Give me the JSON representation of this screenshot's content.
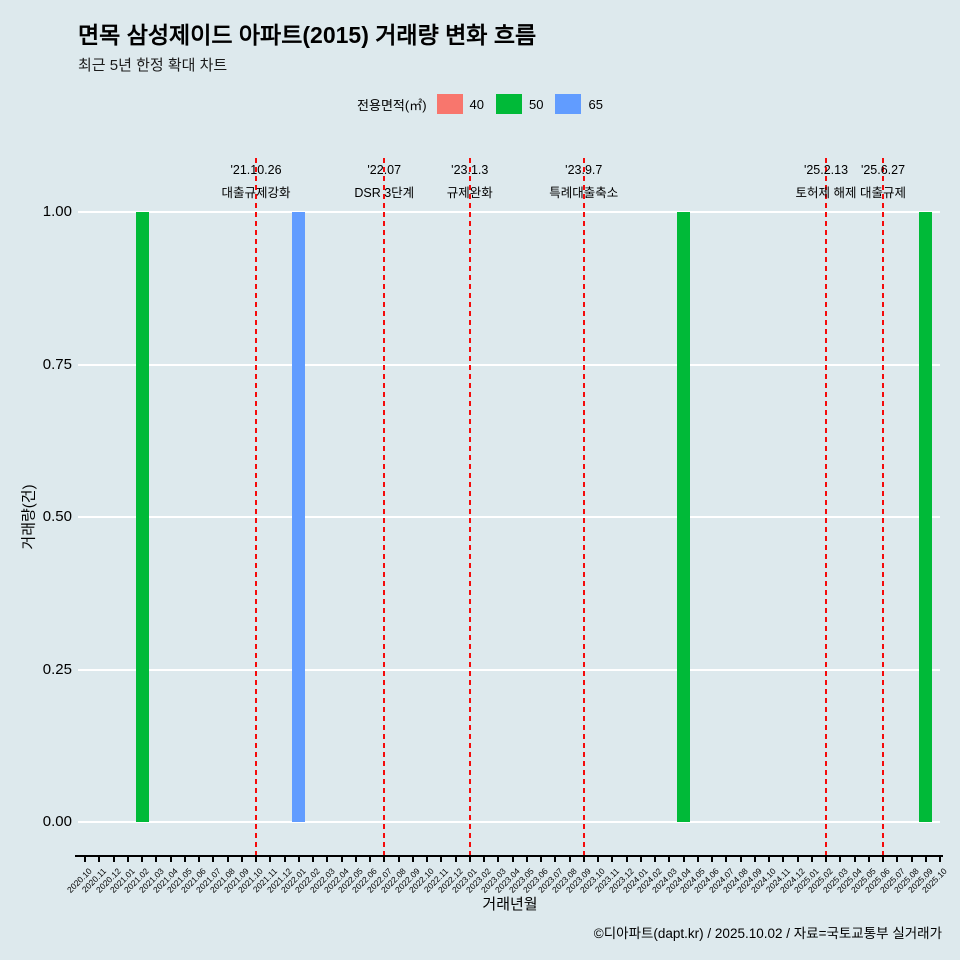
{
  "title": "면목 삼성제이드 아파트(2015) 거래량 변화 흐름",
  "subtitle": "최근 5년 한정 확대 차트",
  "legend": {
    "label": "전용면적(㎡)",
    "items": [
      {
        "label": "40",
        "color": "#f8766d"
      },
      {
        "label": "50",
        "color": "#00ba38"
      },
      {
        "label": "65",
        "color": "#619cff"
      }
    ]
  },
  "chart_data": {
    "type": "bar",
    "title": "면목 삼성제이드 아파트(2015) 거래량 변화 흐름",
    "subtitle": "최근 5년 한정 확대 차트",
    "xlabel": "거래년월",
    "ylabel": "거래량(건)",
    "ylim": [
      0,
      1
    ],
    "yticks": [
      0,
      0.25,
      0.5,
      0.75,
      1
    ],
    "grid": "horizontal-white",
    "legend_position": "top-center",
    "categories": [
      "2020.10",
      "2020.11",
      "2020.12",
      "2021.01",
      "2021.02",
      "2021.03",
      "2021.04",
      "2021.05",
      "2021.06",
      "2021.07",
      "2021.08",
      "2021.09",
      "2021.10",
      "2021.11",
      "2021.12",
      "2022.01",
      "2022.02",
      "2022.03",
      "2022.04",
      "2022.05",
      "2022.06",
      "2022.07",
      "2022.08",
      "2022.09",
      "2022.10",
      "2022.11",
      "2022.12",
      "2023.01",
      "2023.02",
      "2023.03",
      "2023.04",
      "2023.05",
      "2023.06",
      "2023.07",
      "2023.08",
      "2023.09",
      "2023.10",
      "2023.11",
      "2023.12",
      "2024.01",
      "2024.02",
      "2024.03",
      "2024.04",
      "2024.05",
      "2024.06",
      "2024.07",
      "2024.08",
      "2024.09",
      "2024.10",
      "2024.11",
      "2024.12",
      "2025.01",
      "2025.02",
      "2025.03",
      "2025.04",
      "2025.05",
      "2025.06",
      "2025.07",
      "2025.08",
      "2025.09",
      "2025.10"
    ],
    "series": [
      {
        "name": "40",
        "color": "#f8766d",
        "points": []
      },
      {
        "name": "50",
        "color": "#00ba38",
        "points": [
          {
            "x": "2021.02",
            "y": 1
          },
          {
            "x": "2024.04",
            "y": 1
          },
          {
            "x": "2025.09",
            "y": 1
          }
        ]
      },
      {
        "name": "65",
        "color": "#619cff",
        "points": [
          {
            "x": "2022.01",
            "y": 1
          }
        ]
      }
    ],
    "annotations": [
      {
        "x": "2021.10",
        "line1": "'21.10.26",
        "line2": "대출규제강화"
      },
      {
        "x": "2022.07",
        "line1": "'22.07",
        "line2": "DSR 3단계"
      },
      {
        "x": "2023.01",
        "line1": "'23.1.3",
        "line2": "규제완화"
      },
      {
        "x": "2023.09",
        "line1": "'23.9.7",
        "line2": "특례대출축소"
      },
      {
        "x": "2025.02",
        "line1": "'25.2.13",
        "line2": "토허제 해제"
      },
      {
        "x": "2025.06",
        "line1": "'25.6.27",
        "line2": "대출규제"
      }
    ],
    "event_line_color": "#f50b0b"
  },
  "footer": "©디아파트(dapt.kr) / 2025.10.02 / 자료=국토교통부 실거래가"
}
